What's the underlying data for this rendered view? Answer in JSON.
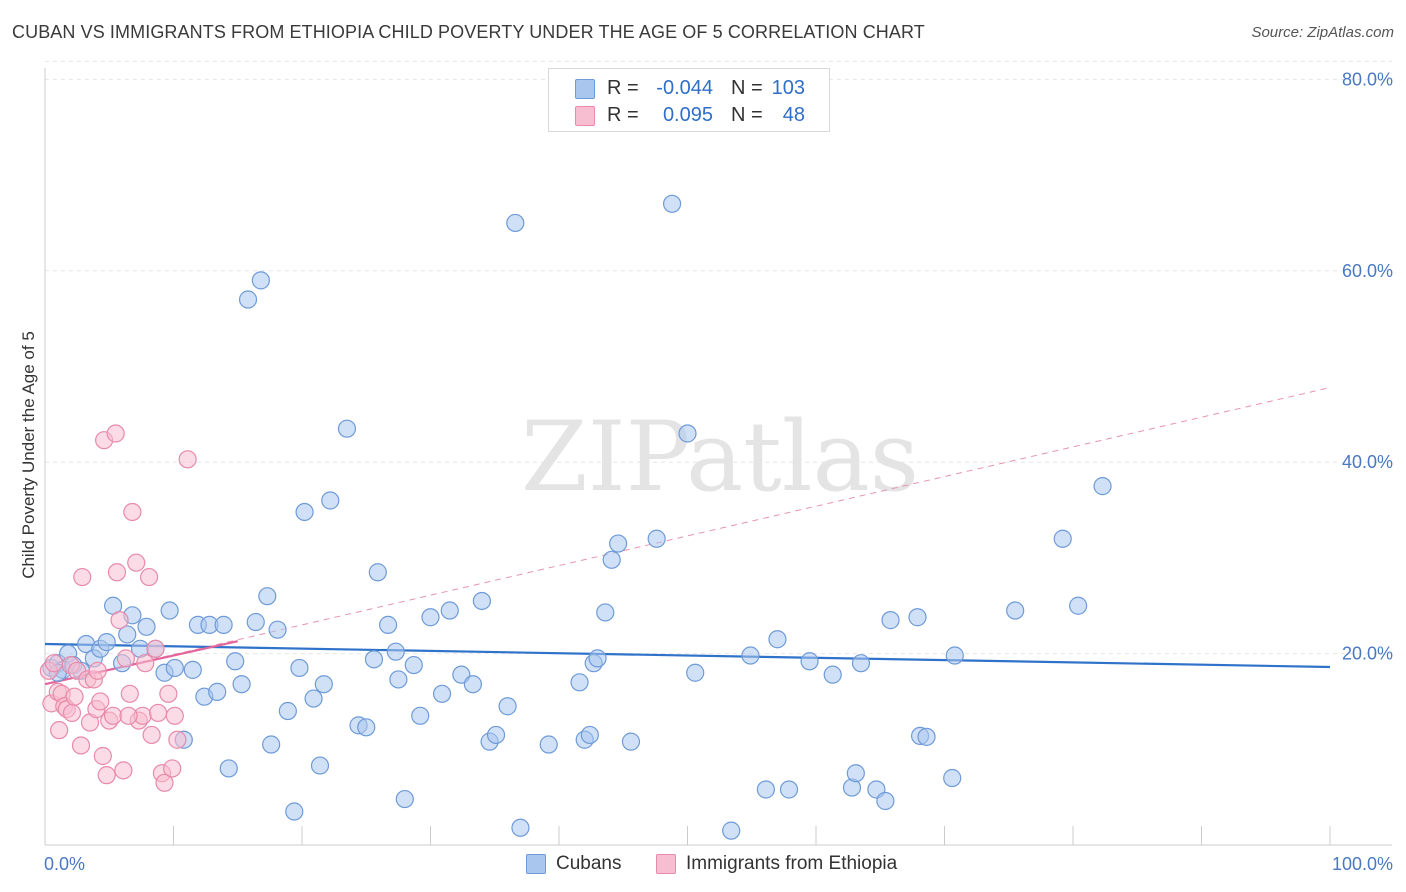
{
  "title": "CUBAN VS IMMIGRANTS FROM ETHIOPIA CHILD POVERTY UNDER THE AGE OF 5 CORRELATION CHART",
  "source": "Source: ZipAtlas.com",
  "watermark": "ZIPatlas",
  "stats": [
    {
      "r_label": "R =",
      "r_value": "-0.044",
      "n_label": "N =",
      "n_value": "103",
      "color": "#a9c6ee",
      "border": "#6e9bd8"
    },
    {
      "r_label": "R =",
      "r_value": "0.095",
      "n_label": "N =",
      "n_value": "48",
      "color": "#f7bdd0",
      "border": "#e88aa9"
    }
  ],
  "legend": [
    {
      "label": "Cubans",
      "color": "#a9c6ee",
      "border": "#6e9bd8"
    },
    {
      "label": "Immigrants from Ethiopia",
      "color": "#f7bdd0",
      "border": "#e88aa9"
    }
  ],
  "chart_data": {
    "type": "scatter",
    "title": "CUBAN VS IMMIGRANTS FROM ETHIOPIA CHILD POVERTY UNDER THE AGE OF 5 CORRELATION CHART",
    "xlabel": "",
    "ylabel": "Child Poverty Under the Age of 5",
    "xlim": [
      0,
      100
    ],
    "ylim": [
      0,
      85
    ],
    "x_ticks_labels": [
      "0.0%",
      "100.0%"
    ],
    "y_ticks": [
      20,
      40,
      60,
      80
    ],
    "y_tick_labels": [
      "20.0%",
      "40.0%",
      "60.0%",
      "80.0%"
    ],
    "grid": true,
    "series": [
      {
        "name": "Cubans",
        "color": "#a9c6ee",
        "stroke": "#6e9bd8",
        "trend": {
          "x": [
            0,
            100
          ],
          "y": [
            21.0,
            18.6
          ],
          "color": "#2f72c9",
          "style": "solid"
        },
        "points": [
          [
            0.5,
            18.5
          ],
          [
            1.0,
            19.0
          ],
          [
            1.4,
            18.3
          ],
          [
            1.8,
            20.0
          ],
          [
            2.2,
            18.8
          ],
          [
            2.8,
            18.2
          ],
          [
            3.2,
            21.0
          ],
          [
            3.8,
            19.5
          ],
          [
            4.3,
            20.5
          ],
          [
            4.8,
            21.2
          ],
          [
            5.3,
            25.0
          ],
          [
            6.0,
            19.0
          ],
          [
            6.4,
            22.0
          ],
          [
            6.8,
            24.0
          ],
          [
            7.4,
            20.5
          ],
          [
            7.9,
            22.8
          ],
          [
            8.6,
            20.5
          ],
          [
            9.3,
            18.0
          ],
          [
            9.7,
            24.5
          ],
          [
            10.1,
            18.5
          ],
          [
            10.8,
            11.0
          ],
          [
            11.5,
            18.3
          ],
          [
            11.9,
            23.0
          ],
          [
            12.4,
            15.5
          ],
          [
            12.8,
            23.0
          ],
          [
            13.4,
            16.0
          ],
          [
            13.9,
            23.0
          ],
          [
            14.3,
            8.0
          ],
          [
            14.8,
            19.2
          ],
          [
            15.3,
            16.8
          ],
          [
            15.8,
            57.0
          ],
          [
            16.4,
            23.3
          ],
          [
            16.8,
            59.0
          ],
          [
            17.3,
            26.0
          ],
          [
            17.6,
            10.5
          ],
          [
            18.1,
            22.5
          ],
          [
            18.9,
            14.0
          ],
          [
            19.4,
            3.5
          ],
          [
            19.8,
            18.5
          ],
          [
            20.2,
            34.8
          ],
          [
            20.9,
            15.3
          ],
          [
            21.4,
            8.3
          ],
          [
            21.7,
            16.8
          ],
          [
            22.2,
            36.0
          ],
          [
            23.5,
            43.5
          ],
          [
            24.4,
            12.5
          ],
          [
            25.0,
            12.3
          ],
          [
            25.6,
            19.4
          ],
          [
            25.9,
            28.5
          ],
          [
            26.7,
            23.0
          ],
          [
            27.3,
            20.2
          ],
          [
            27.5,
            17.3
          ],
          [
            28.0,
            4.8
          ],
          [
            28.7,
            18.8
          ],
          [
            29.2,
            13.5
          ],
          [
            30.0,
            23.8
          ],
          [
            30.9,
            15.8
          ],
          [
            31.5,
            24.5
          ],
          [
            32.4,
            17.8
          ],
          [
            33.3,
            16.8
          ],
          [
            34.0,
            25.5
          ],
          [
            34.6,
            10.8
          ],
          [
            35.1,
            11.5
          ],
          [
            36.0,
            14.5
          ],
          [
            36.6,
            65.0
          ],
          [
            37.0,
            1.8
          ],
          [
            39.2,
            10.5
          ],
          [
            41.6,
            17.0
          ],
          [
            42.0,
            11.0
          ],
          [
            42.4,
            11.5
          ],
          [
            42.7,
            19.0
          ],
          [
            43.0,
            19.5
          ],
          [
            43.6,
            24.3
          ],
          [
            44.1,
            29.8
          ],
          [
            44.6,
            31.5
          ],
          [
            45.6,
            10.8
          ],
          [
            47.6,
            32.0
          ],
          [
            48.8,
            67.0
          ],
          [
            50.0,
            43.0
          ],
          [
            50.6,
            18.0
          ],
          [
            53.4,
            1.5
          ],
          [
            54.9,
            19.8
          ],
          [
            56.1,
            5.8
          ],
          [
            57.0,
            21.5
          ],
          [
            57.9,
            5.8
          ],
          [
            59.5,
            19.2
          ],
          [
            61.3,
            17.8
          ],
          [
            62.8,
            6.0
          ],
          [
            63.1,
            7.5
          ],
          [
            63.5,
            19.0
          ],
          [
            64.7,
            5.8
          ],
          [
            65.4,
            4.6
          ],
          [
            65.8,
            23.5
          ],
          [
            67.9,
            23.8
          ],
          [
            68.1,
            11.4
          ],
          [
            68.6,
            11.3
          ],
          [
            70.6,
            7.0
          ],
          [
            70.8,
            19.8
          ],
          [
            75.5,
            24.5
          ],
          [
            79.2,
            32.0
          ],
          [
            80.4,
            25.0
          ],
          [
            82.3,
            37.5
          ],
          [
            1.0,
            18.0
          ]
        ]
      },
      {
        "name": "Immigrants from Ethiopia",
        "color": "#f7bdd0",
        "stroke": "#e88aa9",
        "trend": {
          "x": [
            0,
            15
          ],
          "y": [
            16.8,
            21.3
          ],
          "color": "#e2659b",
          "style": "solid"
        },
        "trend_extended": {
          "x": [
            0,
            100
          ],
          "y": [
            16.8,
            47.8
          ],
          "color": "#e893b3",
          "style": "dashed"
        },
        "points": [
          [
            0.3,
            18.2
          ],
          [
            0.5,
            14.8
          ],
          [
            0.7,
            19.0
          ],
          [
            1.0,
            16.0
          ],
          [
            1.1,
            12.0
          ],
          [
            1.3,
            15.8
          ],
          [
            1.5,
            14.5
          ],
          [
            1.7,
            14.2
          ],
          [
            2.0,
            18.8
          ],
          [
            2.1,
            13.8
          ],
          [
            2.3,
            15.5
          ],
          [
            2.5,
            18.2
          ],
          [
            2.8,
            10.4
          ],
          [
            2.9,
            28.0
          ],
          [
            3.3,
            17.3
          ],
          [
            3.5,
            12.8
          ],
          [
            3.8,
            17.3
          ],
          [
            4.0,
            14.2
          ],
          [
            4.1,
            18.2
          ],
          [
            4.3,
            15.0
          ],
          [
            4.5,
            9.3
          ],
          [
            4.6,
            42.3
          ],
          [
            4.8,
            7.3
          ],
          [
            5.0,
            13.0
          ],
          [
            5.3,
            13.5
          ],
          [
            5.5,
            43.0
          ],
          [
            5.6,
            28.5
          ],
          [
            5.8,
            23.5
          ],
          [
            6.1,
            7.8
          ],
          [
            6.3,
            19.5
          ],
          [
            6.6,
            15.8
          ],
          [
            6.8,
            34.8
          ],
          [
            7.1,
            29.5
          ],
          [
            7.3,
            13.0
          ],
          [
            7.6,
            13.5
          ],
          [
            7.8,
            19.0
          ],
          [
            8.1,
            28.0
          ],
          [
            8.3,
            11.5
          ],
          [
            8.6,
            20.5
          ],
          [
            8.8,
            13.8
          ],
          [
            9.1,
            7.5
          ],
          [
            9.3,
            6.5
          ],
          [
            9.6,
            15.8
          ],
          [
            9.9,
            8.0
          ],
          [
            10.3,
            11.0
          ],
          [
            10.1,
            13.5
          ],
          [
            11.1,
            40.3
          ],
          [
            6.5,
            13.5
          ]
        ]
      }
    ]
  }
}
